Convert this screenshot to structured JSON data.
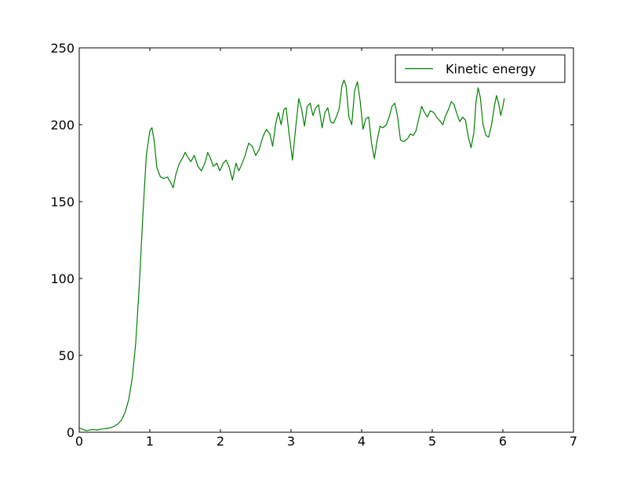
{
  "chart_data": {
    "type": "line",
    "title": "",
    "xlabel": "",
    "ylabel": "",
    "xlim": [
      0,
      7
    ],
    "ylim": [
      0,
      250
    ],
    "xticks": [
      0,
      1,
      2,
      3,
      4,
      5,
      6,
      7
    ],
    "xtick_labels": [
      "0",
      "1",
      "2",
      "3",
      "4",
      "5",
      "6",
      "7"
    ],
    "yticks": [
      0,
      50,
      100,
      150,
      200,
      250
    ],
    "ytick_labels": [
      "0",
      "50",
      "100",
      "150",
      "200",
      "250"
    ],
    "grid": false,
    "legend": {
      "position": "top-right",
      "entries": [
        "Kinetic energy"
      ]
    },
    "series": [
      {
        "name": "Kinetic energy",
        "color": "#008000",
        "points": [
          [
            0.0,
            2.5
          ],
          [
            0.05,
            2.0
          ],
          [
            0.1,
            1.0
          ],
          [
            0.15,
            1.5
          ],
          [
            0.2,
            1.8
          ],
          [
            0.25,
            1.4
          ],
          [
            0.3,
            2.0
          ],
          [
            0.35,
            2.2
          ],
          [
            0.4,
            2.5
          ],
          [
            0.45,
            3.0
          ],
          [
            0.5,
            4.0
          ],
          [
            0.55,
            5.5
          ],
          [
            0.6,
            8.0
          ],
          [
            0.65,
            13.0
          ],
          [
            0.7,
            21.0
          ],
          [
            0.75,
            35.0
          ],
          [
            0.8,
            58.0
          ],
          [
            0.85,
            95.0
          ],
          [
            0.9,
            140.0
          ],
          [
            0.95,
            180.0
          ],
          [
            1.0,
            196.0
          ],
          [
            1.03,
            198.0
          ],
          [
            1.06,
            190.0
          ],
          [
            1.1,
            172.0
          ],
          [
            1.15,
            166.0
          ],
          [
            1.2,
            165.0
          ],
          [
            1.25,
            166.0
          ],
          [
            1.3,
            162.0
          ],
          [
            1.33,
            159.0
          ],
          [
            1.37,
            168.0
          ],
          [
            1.42,
            175.0
          ],
          [
            1.47,
            179.0
          ],
          [
            1.5,
            182.0
          ],
          [
            1.55,
            178.0
          ],
          [
            1.58,
            176.0
          ],
          [
            1.63,
            180.0
          ],
          [
            1.68,
            173.0
          ],
          [
            1.73,
            170.0
          ],
          [
            1.78,
            175.0
          ],
          [
            1.82,
            182.0
          ],
          [
            1.86,
            178.0
          ],
          [
            1.9,
            173.0
          ],
          [
            1.95,
            175.0
          ],
          [
            1.99,
            170.0
          ],
          [
            2.04,
            175.0
          ],
          [
            2.08,
            177.0
          ],
          [
            2.12,
            173.0
          ],
          [
            2.17,
            164.0
          ],
          [
            2.22,
            175.0
          ],
          [
            2.26,
            170.0
          ],
          [
            2.3,
            174.0
          ],
          [
            2.35,
            180.0
          ],
          [
            2.4,
            188.0
          ],
          [
            2.45,
            186.0
          ],
          [
            2.5,
            180.0
          ],
          [
            2.55,
            184.0
          ],
          [
            2.6,
            192.0
          ],
          [
            2.65,
            197.0
          ],
          [
            2.7,
            194.0
          ],
          [
            2.74,
            186.0
          ],
          [
            2.78,
            200.0
          ],
          [
            2.82,
            208.0
          ],
          [
            2.86,
            200.0
          ],
          [
            2.9,
            210.0
          ],
          [
            2.93,
            211.0
          ],
          [
            2.97,
            195.0
          ],
          [
            3.02,
            177.0
          ],
          [
            3.07,
            200.0
          ],
          [
            3.11,
            217.0
          ],
          [
            3.15,
            210.0
          ],
          [
            3.19,
            199.0
          ],
          [
            3.23,
            212.0
          ],
          [
            3.27,
            214.0
          ],
          [
            3.31,
            206.0
          ],
          [
            3.35,
            211.0
          ],
          [
            3.39,
            213.0
          ],
          [
            3.44,
            198.0
          ],
          [
            3.48,
            208.0
          ],
          [
            3.52,
            211.0
          ],
          [
            3.56,
            202.0
          ],
          [
            3.6,
            201.0
          ],
          [
            3.64,
            205.0
          ],
          [
            3.68,
            210.0
          ],
          [
            3.72,
            225.0
          ],
          [
            3.75,
            229.0
          ],
          [
            3.78,
            225.0
          ],
          [
            3.82,
            205.0
          ],
          [
            3.86,
            200.0
          ],
          [
            3.9,
            222.0
          ],
          [
            3.94,
            228.0
          ],
          [
            3.98,
            215.0
          ],
          [
            4.02,
            197.0
          ],
          [
            4.06,
            204.0
          ],
          [
            4.1,
            205.0
          ],
          [
            4.14,
            188.0
          ],
          [
            4.18,
            178.0
          ],
          [
            4.22,
            190.0
          ],
          [
            4.26,
            199.0
          ],
          [
            4.3,
            198.0
          ],
          [
            4.35,
            200.0
          ],
          [
            4.39,
            205.0
          ],
          [
            4.43,
            212.0
          ],
          [
            4.47,
            214.0
          ],
          [
            4.51,
            205.0
          ],
          [
            4.55,
            190.0
          ],
          [
            4.6,
            189.0
          ],
          [
            4.65,
            191.0
          ],
          [
            4.69,
            194.0
          ],
          [
            4.73,
            193.0
          ],
          [
            4.77,
            196.0
          ],
          [
            4.81,
            204.0
          ],
          [
            4.85,
            212.0
          ],
          [
            4.89,
            208.0
          ],
          [
            4.93,
            205.0
          ],
          [
            4.97,
            209.0
          ],
          [
            5.02,
            208.0
          ],
          [
            5.06,
            205.0
          ],
          [
            5.1,
            203.0
          ],
          [
            5.15,
            200.0
          ],
          [
            5.19,
            206.0
          ],
          [
            5.23,
            210.0
          ],
          [
            5.27,
            215.0
          ],
          [
            5.31,
            213.0
          ],
          [
            5.35,
            207.0
          ],
          [
            5.39,
            202.0
          ],
          [
            5.43,
            205.0
          ],
          [
            5.47,
            203.0
          ],
          [
            5.51,
            192.0
          ],
          [
            5.55,
            185.0
          ],
          [
            5.59,
            195.0
          ],
          [
            5.62,
            215.0
          ],
          [
            5.65,
            224.0
          ],
          [
            5.68,
            218.0
          ],
          [
            5.72,
            200.0
          ],
          [
            5.76,
            193.0
          ],
          [
            5.8,
            192.0
          ],
          [
            5.84,
            200.0
          ],
          [
            5.88,
            212.0
          ],
          [
            5.91,
            219.0
          ],
          [
            5.94,
            214.0
          ],
          [
            5.97,
            206.0
          ],
          [
            6.0,
            212.0
          ],
          [
            6.02,
            217.0
          ]
        ]
      }
    ]
  }
}
